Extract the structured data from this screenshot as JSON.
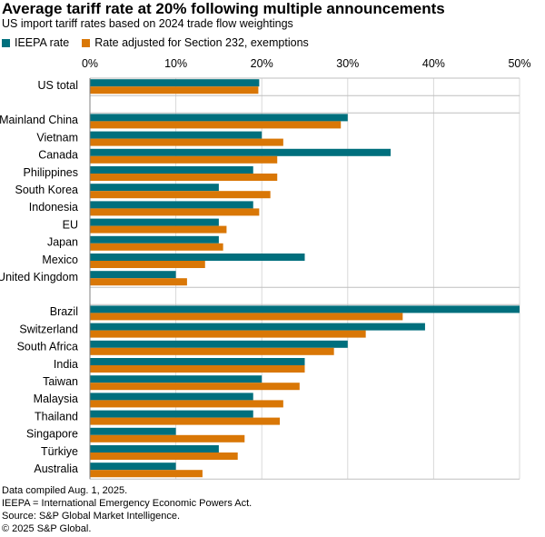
{
  "chart_data": {
    "type": "bar",
    "orientation": "horizontal",
    "title": "Average tariff rate at 20% following multiple announcements",
    "subtitle": "US import tariff rates based on 2024 trade flow weightings",
    "xlim": [
      0,
      50
    ],
    "xticks": [
      "0%",
      "10%",
      "20%",
      "30%",
      "40%",
      "50%"
    ],
    "xtick_values": [
      0,
      10,
      20,
      30,
      40,
      50
    ],
    "categories": [
      "US total",
      "Mainland China",
      "Vietnam",
      "Canada",
      "Philippines",
      "South Korea",
      "Indonesia",
      "EU",
      "Japan",
      "Mexico",
      "United Kingdom",
      "Brazil",
      "Switzerland",
      "South Africa",
      "India",
      "Taiwan",
      "Malaysia",
      "Thailand",
      "Singapore",
      "Türkiye",
      "Australia"
    ],
    "groups": [
      [
        0
      ],
      [
        1,
        2,
        3,
        4,
        5,
        6,
        7,
        8,
        9,
        10
      ],
      [
        11,
        12,
        13,
        14,
        15,
        16,
        17,
        18,
        19,
        20
      ]
    ],
    "series": [
      {
        "name": "IEEPA rate",
        "color": "#006f7d",
        "values": [
          19.7,
          30,
          20,
          35,
          19,
          15,
          19,
          15,
          15,
          25,
          10,
          50,
          39,
          30,
          25,
          20,
          19,
          19,
          10,
          15,
          10
        ]
      },
      {
        "name": "Rate adjusted for Section 232, exemptions",
        "color": "#d97706",
        "values": [
          19.6,
          29.2,
          22.5,
          21.8,
          21.8,
          21,
          19.7,
          15.9,
          15.5,
          13.4,
          11.3,
          36.4,
          32.1,
          28.4,
          25,
          24.4,
          22.5,
          22.1,
          18,
          17.2,
          13.1
        ]
      }
    ]
  },
  "footnotes": [
    "Data compiled Aug. 1, 2025.",
    "IEEPA = International Emergency Economic Powers Act.",
    "Source: S&P Global Market Intelligence.",
    "© 2025 S&P Global."
  ]
}
